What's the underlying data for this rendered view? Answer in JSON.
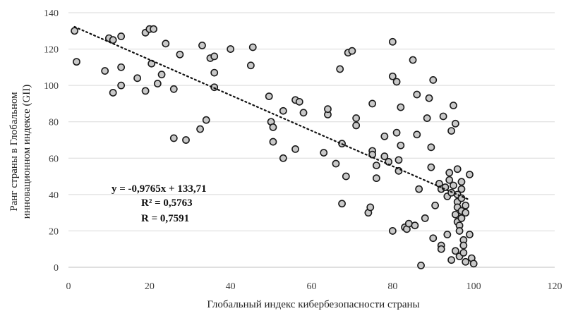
{
  "chart_data": {
    "type": "scatter",
    "xlabel": "Глобальный индекс кибербезопасности страны",
    "ylabel_lines": [
      "Ранг страны в  Глобальном",
      "инновационном индексе (GII)"
    ],
    "xlim": [
      0,
      120
    ],
    "ylim": [
      0,
      140
    ],
    "xticks": [
      0,
      20,
      40,
      60,
      80,
      100,
      120
    ],
    "yticks": [
      0,
      20,
      40,
      60,
      80,
      100,
      120,
      140
    ],
    "grid": "horizontal",
    "marker": "circle",
    "colors": {
      "point_fill": "#c9c9c9",
      "point_edge": "#1a1a1a",
      "trend": "#111111",
      "grid": "#d9d9d9"
    },
    "trendline": {
      "style": "dotted",
      "slope": -0.9765,
      "intercept": 133.71,
      "x_range": [
        1.5,
        99
      ]
    },
    "annotations": {
      "equation": "y = -0,9765x + 133,71",
      "r2": "R² = 0,5763",
      "r": "R = 0,7591"
    },
    "points": [
      [
        1.5,
        130
      ],
      [
        2,
        113
      ],
      [
        9,
        108
      ],
      [
        10,
        126
      ],
      [
        11,
        125
      ],
      [
        11,
        96
      ],
      [
        13,
        127
      ],
      [
        13,
        110
      ],
      [
        13,
        100
      ],
      [
        17,
        104
      ],
      [
        19,
        129
      ],
      [
        19,
        97
      ],
      [
        20,
        131
      ],
      [
        20.5,
        112
      ],
      [
        21,
        131
      ],
      [
        22,
        101
      ],
      [
        23,
        106
      ],
      [
        24,
        123
      ],
      [
        26,
        98
      ],
      [
        26,
        71
      ],
      [
        27.5,
        117
      ],
      [
        29,
        70
      ],
      [
        32.5,
        76
      ],
      [
        33,
        122
      ],
      [
        34,
        81
      ],
      [
        35,
        115
      ],
      [
        36,
        99
      ],
      [
        36,
        107
      ],
      [
        36,
        116
      ],
      [
        40,
        120
      ],
      [
        45,
        111
      ],
      [
        45.5,
        121
      ],
      [
        49.5,
        94
      ],
      [
        50,
        80
      ],
      [
        50.5,
        77
      ],
      [
        50.5,
        69
      ],
      [
        53,
        86
      ],
      [
        53,
        60
      ],
      [
        56,
        65
      ],
      [
        56,
        92
      ],
      [
        57,
        91
      ],
      [
        58,
        85
      ],
      [
        63,
        63
      ],
      [
        64,
        84
      ],
      [
        64,
        87
      ],
      [
        66,
        57
      ],
      [
        67,
        109
      ],
      [
        67.5,
        68
      ],
      [
        67.5,
        35
      ],
      [
        68.5,
        50
      ],
      [
        69,
        118
      ],
      [
        70,
        119
      ],
      [
        71,
        82
      ],
      [
        71,
        78
      ],
      [
        74,
        30
      ],
      [
        74.5,
        33
      ],
      [
        75,
        90
      ],
      [
        75,
        64
      ],
      [
        75,
        62
      ],
      [
        76,
        56
      ],
      [
        76,
        49
      ],
      [
        78,
        72
      ],
      [
        78,
        61
      ],
      [
        79,
        58
      ],
      [
        80,
        20
      ],
      [
        80,
        124
      ],
      [
        80,
        105
      ],
      [
        81,
        102
      ],
      [
        81,
        74
      ],
      [
        81.5,
        59
      ],
      [
        81.5,
        53
      ],
      [
        82,
        88
      ],
      [
        82,
        67
      ],
      [
        83,
        22
      ],
      [
        83.5,
        21
      ],
      [
        84,
        24
      ],
      [
        85,
        114
      ],
      [
        85.5,
        23
      ],
      [
        86,
        95
      ],
      [
        86,
        73
      ],
      [
        86.5,
        43
      ],
      [
        87,
        1
      ],
      [
        88,
        27
      ],
      [
        88.5,
        82
      ],
      [
        89,
        93
      ],
      [
        89.5,
        66
      ],
      [
        89.5,
        55
      ],
      [
        90,
        103
      ],
      [
        90,
        16
      ],
      [
        90.5,
        34
      ],
      [
        91.5,
        46
      ],
      [
        92,
        43
      ],
      [
        92,
        12
      ],
      [
        92,
        10
      ],
      [
        92.5,
        83
      ],
      [
        93,
        44
      ],
      [
        93.5,
        18
      ],
      [
        93.5,
        39
      ],
      [
        94,
        48
      ],
      [
        94,
        52
      ],
      [
        94.5,
        4
      ],
      [
        94.5,
        41
      ],
      [
        94.5,
        75
      ],
      [
        95,
        89
      ],
      [
        95,
        45
      ],
      [
        95.5,
        79
      ],
      [
        95.5,
        29
      ],
      [
        95.5,
        9
      ],
      [
        96,
        54
      ],
      [
        96,
        40
      ],
      [
        96,
        36
      ],
      [
        96,
        33
      ],
      [
        96,
        25
      ],
      [
        96.5,
        23
      ],
      [
        96.5,
        20
      ],
      [
        96.5,
        6
      ],
      [
        97,
        47
      ],
      [
        97,
        43
      ],
      [
        97,
        38
      ],
      [
        97,
        31
      ],
      [
        97,
        27
      ],
      [
        97.5,
        15
      ],
      [
        97.5,
        12
      ],
      [
        97.5,
        8
      ],
      [
        98,
        34
      ],
      [
        98,
        30
      ],
      [
        98,
        3
      ],
      [
        99,
        51
      ],
      [
        99,
        18
      ],
      [
        99.5,
        5
      ],
      [
        100,
        2
      ]
    ]
  }
}
